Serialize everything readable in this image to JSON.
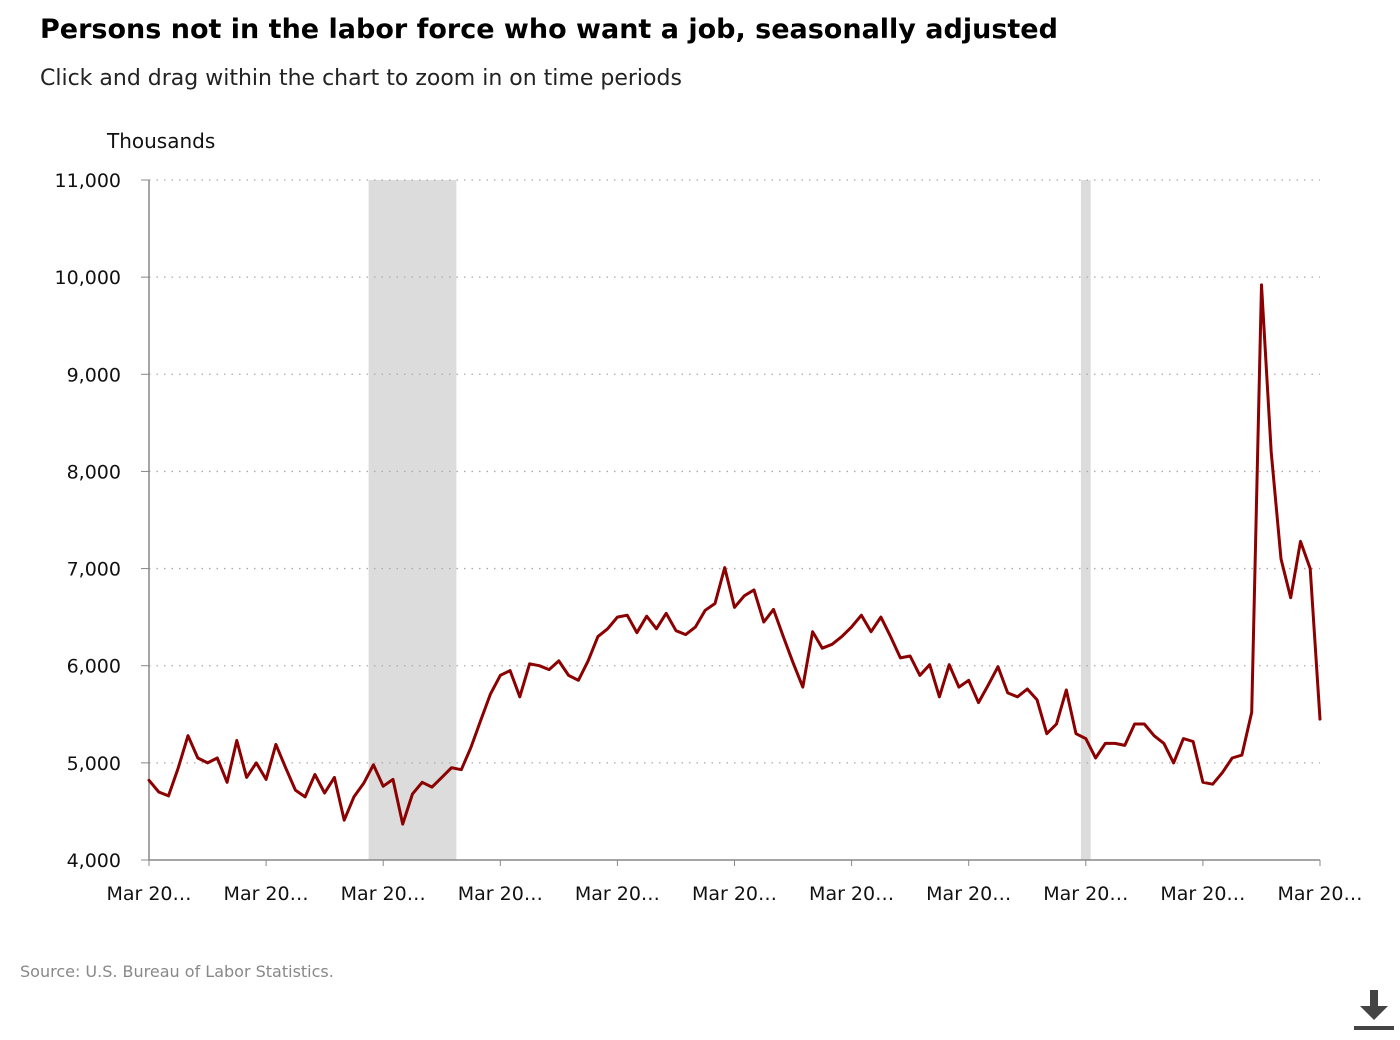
{
  "title": "Persons not in the labor force who want a job, seasonally adjusted",
  "subtitle": "Click and drag within the chart to zoom in on time periods",
  "source": "Source: U.S. Bureau of Labor Statistics.",
  "icons": {
    "download": "download-icon"
  },
  "colors": {
    "line": "#8b0000",
    "recession": "#dcdcdc",
    "axis": "#888888",
    "grid": "#aaaaaa"
  },
  "chart_data": {
    "type": "line",
    "ylabel": "Thousands",
    "ylim": [
      4000,
      11000
    ],
    "yticks": [
      4000,
      5000,
      6000,
      7000,
      8000,
      9000,
      10000,
      11000
    ],
    "ytick_labels": [
      "4,000",
      "5,000",
      "6,000",
      "7,000",
      "8,000",
      "9,000",
      "10,000",
      "11,000"
    ],
    "xlim": [
      "2005-03",
      "2025-03"
    ],
    "xticks": [
      "2005-03",
      "2007-03",
      "2009-03",
      "2011-03",
      "2013-03",
      "2015-03",
      "2017-03",
      "2019-03",
      "2021-03",
      "2023-03",
      "2025-03"
    ],
    "xtick_labels": [
      "Mar 20…",
      "Mar 20…",
      "Mar 20…",
      "Mar 20…",
      "Mar 20…",
      "Mar 20…",
      "Mar 20…",
      "Mar 20…",
      "Mar 20…",
      "Mar 20…",
      "Mar 20…"
    ],
    "grid": true,
    "legend": "none",
    "recessions": [
      {
        "start": "2008-12",
        "end": "2010-06"
      },
      {
        "start": "2021-02",
        "end": "2021-04"
      }
    ],
    "series": [
      {
        "points": [
          [
            "2005-03",
            4820
          ],
          [
            "2005-05",
            4700
          ],
          [
            "2005-07",
            4660
          ],
          [
            "2005-09",
            4950
          ],
          [
            "2005-11",
            5280
          ],
          [
            "2006-01",
            5050
          ],
          [
            "2006-03",
            5000
          ],
          [
            "2006-05",
            5050
          ],
          [
            "2006-07",
            4800
          ],
          [
            "2006-09",
            5230
          ],
          [
            "2006-11",
            4850
          ],
          [
            "2007-01",
            5000
          ],
          [
            "2007-03",
            4830
          ],
          [
            "2007-05",
            5190
          ],
          [
            "2007-07",
            4950
          ],
          [
            "2007-09",
            4720
          ],
          [
            "2007-11",
            4650
          ],
          [
            "2008-01",
            4880
          ],
          [
            "2008-03",
            4690
          ],
          [
            "2008-05",
            4850
          ],
          [
            "2008-07",
            4410
          ],
          [
            "2008-09",
            4650
          ],
          [
            "2008-11",
            4790
          ],
          [
            "2009-01",
            4980
          ],
          [
            "2009-03",
            4760
          ],
          [
            "2009-05",
            4830
          ],
          [
            "2009-07",
            4370
          ],
          [
            "2009-09",
            4680
          ],
          [
            "2009-11",
            4800
          ],
          [
            "2010-01",
            4750
          ],
          [
            "2010-03",
            4850
          ],
          [
            "2010-05",
            4950
          ],
          [
            "2010-07",
            4930
          ],
          [
            "2010-09",
            5160
          ],
          [
            "2010-11",
            5440
          ],
          [
            "2011-01",
            5710
          ],
          [
            "2011-03",
            5900
          ],
          [
            "2011-05",
            5950
          ],
          [
            "2011-07",
            5680
          ],
          [
            "2011-09",
            6020
          ],
          [
            "2011-11",
            6000
          ],
          [
            "2012-01",
            5960
          ],
          [
            "2012-03",
            6050
          ],
          [
            "2012-05",
            5900
          ],
          [
            "2012-07",
            5850
          ],
          [
            "2012-09",
            6050
          ],
          [
            "2012-11",
            6300
          ],
          [
            "2013-01",
            6380
          ],
          [
            "2013-03",
            6500
          ],
          [
            "2013-05",
            6520
          ],
          [
            "2013-07",
            6340
          ],
          [
            "2013-09",
            6510
          ],
          [
            "2013-11",
            6380
          ],
          [
            "2014-01",
            6540
          ],
          [
            "2014-03",
            6360
          ],
          [
            "2014-05",
            6320
          ],
          [
            "2014-07",
            6400
          ],
          [
            "2014-09",
            6570
          ],
          [
            "2014-11",
            6640
          ],
          [
            "2015-01",
            7010
          ],
          [
            "2015-03",
            6600
          ],
          [
            "2015-05",
            6720
          ],
          [
            "2015-07",
            6780
          ],
          [
            "2015-09",
            6450
          ],
          [
            "2015-11",
            6580
          ],
          [
            "2016-01",
            6300
          ],
          [
            "2016-03",
            6030
          ],
          [
            "2016-05",
            5780
          ],
          [
            "2016-07",
            6350
          ],
          [
            "2016-09",
            6180
          ],
          [
            "2016-11",
            6220
          ],
          [
            "2017-01",
            6300
          ],
          [
            "2017-03",
            6400
          ],
          [
            "2017-05",
            6520
          ],
          [
            "2017-07",
            6350
          ],
          [
            "2017-09",
            6500
          ],
          [
            "2017-11",
            6300
          ],
          [
            "2018-01",
            6080
          ],
          [
            "2018-03",
            6100
          ],
          [
            "2018-05",
            5900
          ],
          [
            "2018-07",
            6010
          ],
          [
            "2018-09",
            5680
          ],
          [
            "2018-11",
            6010
          ],
          [
            "2019-01",
            5780
          ],
          [
            "2019-03",
            5850
          ],
          [
            "2019-05",
            5620
          ],
          [
            "2019-07",
            5800
          ],
          [
            "2019-09",
            5990
          ],
          [
            "2019-11",
            5720
          ],
          [
            "2020-01",
            5680
          ],
          [
            "2020-03",
            5760
          ],
          [
            "2020-05",
            5650
          ],
          [
            "2020-07",
            5300
          ],
          [
            "2020-09",
            5400
          ],
          [
            "2020-11",
            5750
          ],
          [
            "2021-01",
            5300
          ],
          [
            "2021-03",
            5250
          ],
          [
            "2021-05",
            5050
          ],
          [
            "2021-07",
            5200
          ],
          [
            "2021-09",
            5200
          ],
          [
            "2021-11",
            5180
          ],
          [
            "2022-01",
            5400
          ],
          [
            "2022-03",
            5400
          ],
          [
            "2022-05",
            5280
          ],
          [
            "2022-07",
            5200
          ],
          [
            "2022-09",
            5000
          ],
          [
            "2022-11",
            5250
          ],
          [
            "2023-01",
            5220
          ],
          [
            "2023-03",
            4800
          ],
          [
            "2023-05",
            4780
          ],
          [
            "2023-07",
            4900
          ],
          [
            "2023-09",
            5050
          ],
          [
            "2023-11",
            5080
          ],
          [
            "2024-01",
            5520
          ],
          [
            "2024-03",
            9920
          ],
          [
            "2024-05",
            8200
          ],
          [
            "2024-07",
            7100
          ],
          [
            "2024-09",
            6700
          ],
          [
            "2024-11",
            7280
          ],
          [
            "2025-01",
            7000
          ],
          [
            "2025-03",
            5450
          ]
        ]
      }
    ]
  }
}
